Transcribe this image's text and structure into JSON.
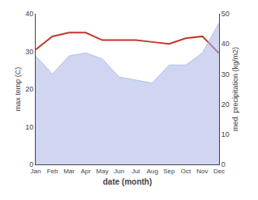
{
  "chart_data": {
    "type": "line",
    "categories": [
      "Jan",
      "Feb",
      "Mar",
      "Apr",
      "May",
      "Jun",
      "Jul",
      "Aug",
      "Sep",
      "Oct",
      "Nov",
      "Dec"
    ],
    "series": [
      {
        "type": "area",
        "axis": "y2",
        "color": "#aab4e8",
        "values": [
          36,
          30,
          36,
          37,
          35,
          29,
          28,
          27,
          33,
          33,
          37,
          47
        ]
      },
      {
        "type": "line",
        "color": "#c0392b",
        "values": [
          30.5,
          34.0,
          35.0,
          35.0,
          33.0,
          33.0,
          33.0,
          32.5,
          32.0,
          33.5,
          34.0,
          29.5
        ]
      }
    ],
    "xlabel": "date (month)",
    "ylabel": "max temp (C)",
    "y2label": "med. precipitation (kg/m2)",
    "ylim": [
      0,
      40
    ],
    "yticks": [
      0,
      10,
      20,
      30,
      40
    ],
    "y2lim": [
      0,
      50
    ],
    "y2ticks": [
      0,
      10,
      20,
      30,
      40,
      50
    ],
    "grid": false
  }
}
